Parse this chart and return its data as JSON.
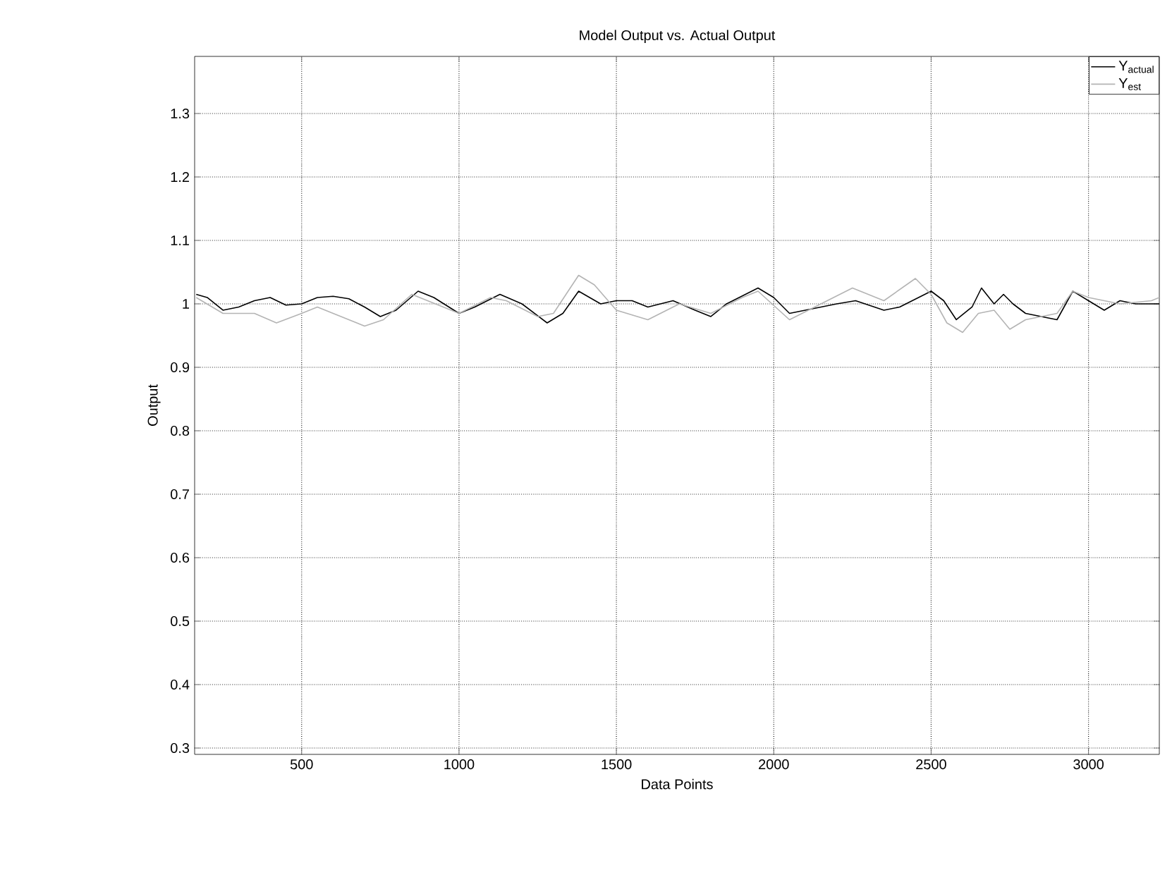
{
  "chart_data": {
    "type": "line",
    "title": "Model Output vs. Actual Output",
    "xlabel": "Data Points",
    "ylabel": "Output",
    "xlim": [
      160,
      3225
    ],
    "ylim": [
      0.29,
      1.39
    ],
    "xticks": [
      500,
      1000,
      1500,
      2000,
      2500,
      3000
    ],
    "yticks": [
      0.3,
      0.4,
      0.5,
      0.6,
      0.7,
      0.8,
      0.9,
      1,
      1.1,
      1.2,
      1.3
    ],
    "grid": true,
    "legend": "top right",
    "line_style": "solid",
    "marker": "none",
    "series": [
      {
        "name": "Y$_{actual}$",
        "color": "#000000",
        "x": [
          165,
          200,
          250,
          300,
          350,
          400,
          450,
          500,
          550,
          600,
          650,
          700,
          750,
          800,
          870,
          920,
          1000,
          1050,
          1130,
          1200,
          1280,
          1330,
          1380,
          1450,
          1500,
          1550,
          1600,
          1680,
          1750,
          1800,
          1850,
          1950,
          2000,
          2050,
          2100,
          2150,
          2200,
          2260,
          2350,
          2400,
          2500,
          2540,
          2580,
          2630,
          2660,
          2700,
          2730,
          2760,
          2800,
          2850,
          2900,
          2950,
          3000,
          3050,
          3100,
          3150,
          3200,
          3225
        ],
        "values": [
          1.015,
          1.01,
          0.99,
          0.995,
          1.005,
          1.01,
          0.998,
          1.0,
          1.01,
          1.012,
          1.008,
          0.995,
          0.98,
          0.99,
          1.02,
          1.01,
          0.985,
          0.995,
          1.015,
          1.0,
          0.97,
          0.985,
          1.02,
          1.0,
          1.005,
          1.005,
          0.995,
          1.005,
          0.99,
          0.98,
          1.0,
          1.025,
          1.01,
          0.985,
          0.99,
          0.995,
          1.0,
          1.005,
          0.99,
          0.995,
          1.02,
          1.005,
          0.975,
          0.995,
          1.025,
          1.0,
          1.015,
          1.0,
          0.985,
          0.98,
          0.975,
          1.02,
          1.005,
          0.99,
          1.005,
          1.0,
          1.0,
          1.0
        ]
      },
      {
        "name": "Y$_{est}$",
        "color": "#b4b4b4",
        "x": [
          165,
          250,
          350,
          420,
          500,
          550,
          600,
          700,
          760,
          850,
          900,
          1000,
          1100,
          1150,
          1250,
          1300,
          1380,
          1430,
          1500,
          1600,
          1700,
          1800,
          1900,
          1950,
          2050,
          2150,
          2250,
          2350,
          2450,
          2500,
          2550,
          2600,
          2650,
          2700,
          2750,
          2800,
          2900,
          2950,
          3000,
          3100,
          3200,
          3225
        ],
        "values": [
          1.01,
          0.985,
          0.985,
          0.97,
          0.985,
          0.995,
          0.985,
          0.965,
          0.975,
          1.015,
          1.005,
          0.985,
          1.01,
          1.005,
          0.98,
          0.985,
          1.045,
          1.03,
          0.99,
          0.975,
          1.0,
          0.985,
          1.01,
          1.02,
          0.975,
          1.0,
          1.025,
          1.005,
          1.04,
          1.015,
          0.97,
          0.955,
          0.985,
          0.99,
          0.96,
          0.975,
          0.985,
          1.02,
          1.01,
          1.0,
          1.005,
          1.01
        ]
      }
    ]
  }
}
